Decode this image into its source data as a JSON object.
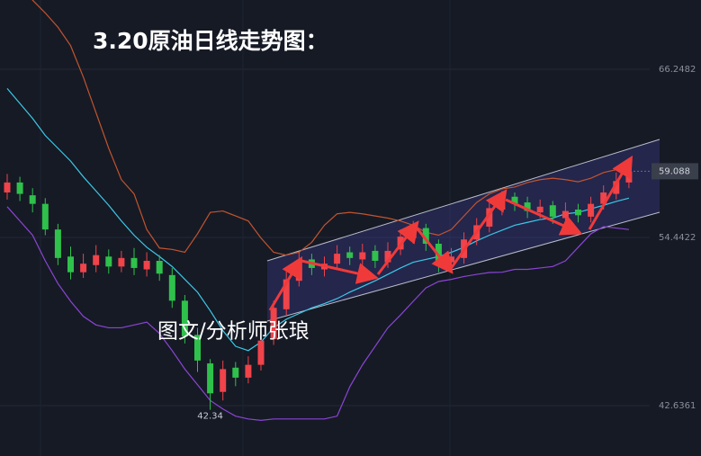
{
  "chart_data": {
    "type": "candlestick",
    "title": "3.20原油日线走势图：",
    "watermark": "图文/分析师张琅",
    "ylim": [
      39.1,
      71.11
    ],
    "yticks": [
      66.2482,
      54.4422,
      42.6361
    ],
    "grid": true,
    "last_price": 59.088,
    "low_label": 42.34,
    "up_color": "#f0434a",
    "down_color": "#2fc14b",
    "open": [
      57.6,
      58.3,
      57.4,
      56.8,
      55.0,
      53.1,
      52.0,
      52.5,
      53.1,
      52.4,
      53.0,
      52.2,
      52.8,
      51.8,
      50.0,
      47.6,
      45.6,
      43.6,
      45.3,
      44.6,
      45.5,
      47.3,
      49.4,
      51.4,
      52.9,
      52.2,
      52.6,
      53.4,
      52.9,
      53.5,
      52.7,
      53.6,
      54.4,
      55.1,
      54.0,
      52.7,
      53.0,
      54.3,
      55.2,
      56.4,
      57.3,
      56.9,
      56.2,
      56.7,
      55.8,
      56.4,
      55.9,
      56.8,
      57.5,
      58.3
    ],
    "high": [
      58.9,
      58.7,
      57.9,
      57.2,
      55.4,
      53.8,
      53.3,
      53.9,
      53.6,
      53.5,
      53.7,
      53.4,
      53.2,
      52.3,
      50.4,
      48.1,
      45.9,
      45.8,
      45.7,
      46.1,
      47.6,
      50.0,
      52.1,
      53.4,
      53.3,
      53.1,
      53.9,
      53.8,
      54.0,
      53.9,
      54.1,
      55.0,
      55.6,
      55.4,
      54.3,
      53.7,
      54.8,
      55.8,
      57.1,
      57.7,
      57.6,
      57.3,
      57.1,
      57.0,
      56.9,
      56.8,
      57.3,
      58.1,
      59.0,
      59.6
    ],
    "low": [
      57.1,
      57.0,
      56.2,
      54.6,
      52.5,
      51.5,
      51.6,
      52.0,
      51.9,
      52.0,
      51.8,
      51.7,
      51.4,
      49.5,
      47.0,
      45.0,
      42.34,
      43.0,
      44.0,
      44.2,
      45.1,
      46.9,
      49.0,
      51.0,
      51.8,
      51.7,
      52.2,
      52.5,
      52.5,
      52.3,
      52.3,
      53.2,
      54.0,
      53.5,
      52.0,
      52.2,
      52.6,
      53.9,
      54.8,
      56.0,
      56.3,
      55.8,
      55.8,
      55.4,
      55.3,
      55.5,
      55.5,
      56.4,
      57.1,
      57.9
    ],
    "close": [
      58.3,
      57.5,
      56.8,
      55.0,
      53.0,
      52.0,
      52.6,
      53.2,
      52.4,
      53.0,
      52.3,
      52.8,
      51.9,
      50.0,
      47.5,
      45.8,
      43.5,
      45.2,
      44.6,
      45.5,
      47.2,
      49.5,
      51.5,
      52.8,
      52.3,
      52.6,
      53.3,
      53.0,
      53.4,
      52.8,
      53.5,
      54.5,
      55.0,
      54.0,
      52.6,
      53.1,
      54.3,
      55.3,
      56.5,
      57.2,
      56.8,
      56.3,
      56.6,
      55.9,
      56.3,
      56.0,
      56.8,
      57.6,
      58.4,
      59.09
    ],
    "lines": [
      {
        "color": "#c2542e",
        "values": [
          74.9,
          73.0,
          71.1,
          70.2,
          69.2,
          67.9,
          65.7,
          63.2,
          60.7,
          58.5,
          57.5,
          55.0,
          53.7,
          53.6,
          53.4,
          54.7,
          56.2,
          56.3,
          55.95,
          55.6,
          54.4,
          53.4,
          53.2,
          53.4,
          54.1,
          55.3,
          56.1,
          56.2,
          56.1,
          55.95,
          55.8,
          55.6,
          55.3,
          54.8,
          54.6,
          55.0,
          55.95,
          56.9,
          57.5,
          57.85,
          57.98,
          58.3,
          58.5,
          58.6,
          58.5,
          58.35,
          58.6,
          59.0,
          59.2,
          59.4
        ]
      },
      {
        "color": "#8b45d6",
        "values": [
          56.6,
          55.6,
          54.6,
          52.8,
          51.2,
          49.96,
          48.9,
          48.3,
          48.1,
          48.1,
          48.3,
          48.5,
          47.7,
          46.5,
          45.2,
          44.1,
          43.0,
          42.4,
          41.9,
          41.7,
          41.6,
          41.7,
          41.7,
          41.7,
          41.7,
          41.7,
          41.9,
          43.96,
          45.5,
          46.8,
          48.1,
          49.0,
          49.96,
          50.9,
          51.35,
          51.5,
          51.7,
          51.85,
          51.98,
          52.0,
          52.2,
          52.2,
          52.3,
          52.4,
          52.8,
          53.75,
          54.7,
          55.2,
          55.1,
          55.0
        ]
      },
      {
        "color": "#3cc8e6",
        "values": [
          64.9,
          63.85,
          62.8,
          61.6,
          60.7,
          59.8,
          58.7,
          57.7,
          56.7,
          55.6,
          54.6,
          53.75,
          53.1,
          52.4,
          51.5,
          50.6,
          49.3,
          47.9,
          46.8,
          46.5,
          47.1,
          48.1,
          48.7,
          49.1,
          49.5,
          49.8,
          50.15,
          50.6,
          51.0,
          51.4,
          51.85,
          52.3,
          52.7,
          52.9,
          53.1,
          53.4,
          53.75,
          54.2,
          54.6,
          54.95,
          55.3,
          55.5,
          55.7,
          55.8,
          56.1,
          56.2,
          56.45,
          56.7,
          56.97,
          57.2
        ]
      }
    ]
  }
}
